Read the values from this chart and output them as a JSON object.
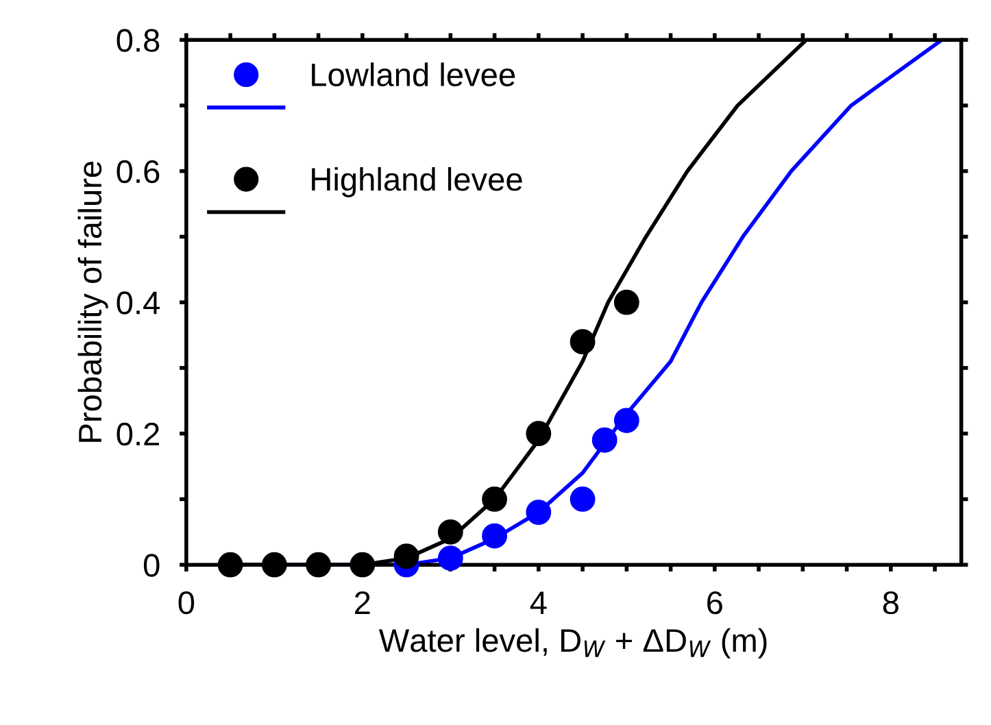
{
  "chart_data": {
    "type": "scatter",
    "xlabel": "Water level, D$_{W}$ + ΔD$_{W}$ (m)",
    "ylabel": "Probability of failure",
    "xlim": [
      0,
      8.8
    ],
    "xticks": [
      0,
      {
        "value": 0.5,
        "label": null
      },
      {
        "value": 1,
        "label": null
      },
      {
        "value": 1.5,
        "label": null
      },
      2,
      {
        "value": 2.5,
        "label": null
      },
      {
        "value": 3,
        "label": null
      },
      {
        "value": 3.5,
        "label": null
      },
      4,
      {
        "value": 4.5,
        "label": null
      },
      {
        "value": 5,
        "label": null
      },
      {
        "value": 5.5,
        "label": null
      },
      6,
      {
        "value": 6.5,
        "label": null
      },
      {
        "value": 7,
        "label": null
      },
      {
        "value": 7.5,
        "label": null
      },
      8,
      {
        "value": 8.5,
        "label": null
      }
    ],
    "ylim": [
      0,
      0.8
    ],
    "yticks": [
      0,
      {
        "value": 0.1,
        "label": null
      },
      0.2,
      {
        "value": 0.3,
        "label": null
      },
      0.4,
      {
        "value": 0.5,
        "label": null
      },
      0.6,
      {
        "value": 0.7,
        "label": null
      },
      0.8
    ],
    "grid": false,
    "legend": "top left",
    "series": [
      {
        "name": "Lowland levee",
        "marker": "circle",
        "color": "#0000ff",
        "x": [
          2.5,
          3,
          3.5,
          4,
          4.5,
          4.75,
          5
        ],
        "values": [
          0,
          0.01,
          0.044,
          0.08,
          0.1,
          0.19,
          0.22
        ]
      },
      {
        "type": "line",
        "marker": "none",
        "line_style": "solid",
        "color": "#0000ff",
        "x": [
          0.5,
          2,
          2.5,
          3,
          3.5,
          4,
          4.5,
          5,
          5.5,
          5.85,
          6.32,
          6.87,
          7.55,
          8.58
        ],
        "values": [
          0,
          0,
          0,
          0.01,
          0.04,
          0.08,
          0.14,
          0.23,
          0.31,
          0.4,
          0.5,
          0.6,
          0.7,
          0.8
        ]
      },
      {
        "name": "Highland levee",
        "marker": "circle",
        "color": "#000000",
        "x": [
          0.5,
          1,
          1.5,
          2,
          2.5,
          3,
          3.5,
          4,
          4.5,
          5
        ],
        "values": [
          0,
          0,
          0,
          0,
          0.013,
          0.05,
          0.1,
          0.2,
          0.34,
          0.4
        ]
      },
      {
        "type": "line",
        "marker": "none",
        "line_style": "solid",
        "color": "#000000",
        "x": [
          0.5,
          2,
          2.5,
          3,
          3.5,
          4,
          4.5,
          4.79,
          5.22,
          5.69,
          6.26,
          7.04
        ],
        "values": [
          0,
          0,
          0.01,
          0.04,
          0.1,
          0.19,
          0.31,
          0.4,
          0.5,
          0.6,
          0.7,
          0.8
        ]
      }
    ]
  }
}
